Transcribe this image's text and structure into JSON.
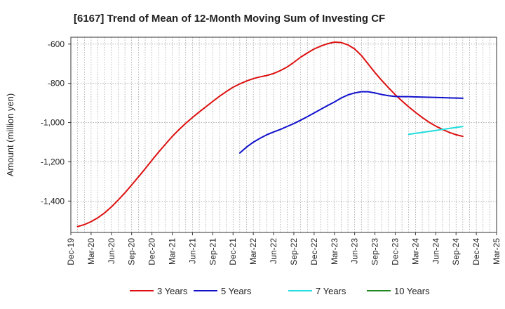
{
  "chart_data": {
    "type": "line",
    "title": "[6167]  Trend of Mean of 12-Month Moving Sum of Investing CF",
    "xlabel": "",
    "ylabel": "Amount (million yen)",
    "ylim": [
      -1560,
      -565
    ],
    "yticks": [
      -600,
      -800,
      -1000,
      -1200,
      -1400
    ],
    "ytick_labels": [
      "-600",
      "-800",
      "-1,000",
      "-1,200",
      "-1,400"
    ],
    "xticks": [
      "Dec-19",
      "Mar-20",
      "Jun-20",
      "Sep-20",
      "Dec-20",
      "Mar-21",
      "Jun-21",
      "Sep-21",
      "Dec-21",
      "Mar-22",
      "Jun-22",
      "Sep-22",
      "Dec-22",
      "Mar-23",
      "Jun-23",
      "Sep-23",
      "Dec-23",
      "Mar-24",
      "Jun-24",
      "Sep-24",
      "Dec-24",
      "Mar-25"
    ],
    "grid": true,
    "legend_position": "bottom",
    "series": [
      {
        "name": "3 Years",
        "color": "#dd1111",
        "x": [
          1,
          2,
          3,
          4,
          5,
          6,
          7,
          8,
          9,
          10,
          11,
          12,
          13,
          14,
          15,
          16,
          17,
          18,
          19,
          20,
          21,
          22,
          23,
          24,
          25,
          26,
          27,
          28,
          29,
          30,
          31,
          32,
          33,
          34,
          35,
          36,
          37,
          38,
          39,
          40,
          41,
          42,
          43,
          44,
          45,
          46,
          47,
          48,
          49,
          50,
          51,
          52,
          53,
          54,
          55,
          56,
          57,
          58
        ],
        "values": [
          -1530,
          -1520,
          -1505,
          -1485,
          -1460,
          -1430,
          -1395,
          -1358,
          -1318,
          -1277,
          -1235,
          -1192,
          -1150,
          -1110,
          -1071,
          -1036,
          -1004,
          -974,
          -946,
          -919,
          -892,
          -866,
          -842,
          -820,
          -803,
          -788,
          -776,
          -767,
          -760,
          -750,
          -735,
          -717,
          -693,
          -667,
          -645,
          -625,
          -610,
          -598,
          -590,
          -592,
          -604,
          -625,
          -658,
          -702,
          -745,
          -785,
          -822,
          -858,
          -890,
          -920,
          -948,
          -974,
          -998,
          -1018,
          -1035,
          -1050,
          -1062,
          -1070
        ],
        "visible_count": 58
      },
      {
        "name": "5 Years",
        "color": "#1111cc",
        "x": [
          25,
          26,
          27,
          28,
          29,
          30,
          31,
          32,
          33,
          34,
          35,
          36,
          37,
          38,
          39,
          40,
          41,
          42,
          43,
          44,
          45,
          46,
          47,
          48,
          49,
          50,
          51,
          52,
          53,
          54,
          55,
          56,
          57,
          58
        ],
        "values": [
          -1155,
          -1125,
          -1100,
          -1080,
          -1062,
          -1048,
          -1035,
          -1020,
          -1005,
          -988,
          -970,
          -951,
          -932,
          -913,
          -895,
          -875,
          -859,
          -849,
          -843,
          -843,
          -849,
          -857,
          -863,
          -867,
          -868,
          -868,
          -869,
          -870,
          -871,
          -872,
          -873,
          -874,
          -875,
          -876
        ]
      },
      {
        "name": "7 Years",
        "color": "#22dddd",
        "x": [
          50,
          51,
          52,
          53,
          54,
          55,
          56,
          57,
          58
        ],
        "values": [
          -1060,
          -1055,
          -1050,
          -1045,
          -1040,
          -1035,
          -1030,
          -1025,
          -1020
        ]
      },
      {
        "name": "10 Years",
        "color": "#228822",
        "x": [],
        "values": []
      }
    ]
  }
}
